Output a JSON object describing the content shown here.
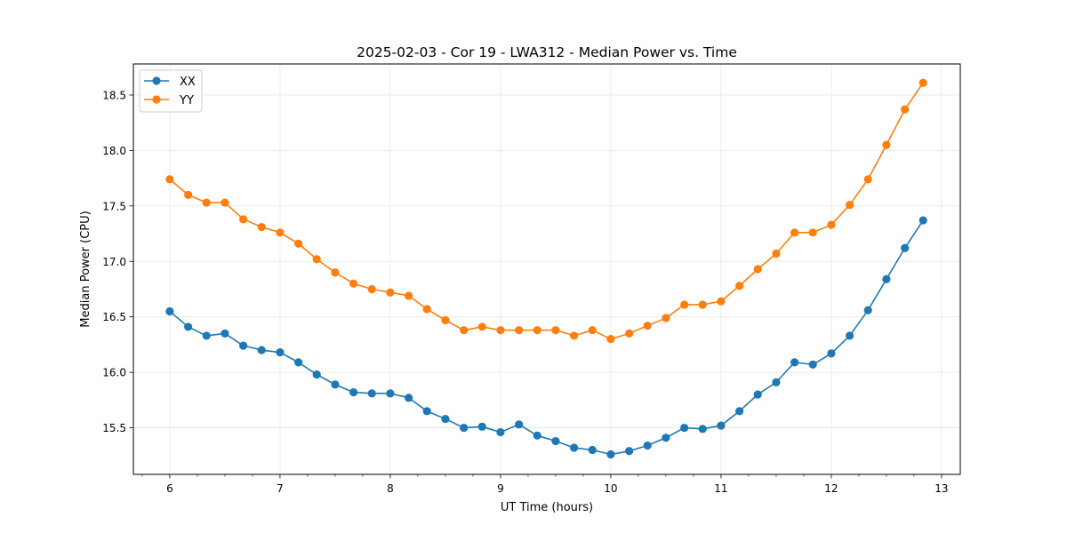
{
  "chart_data": {
    "type": "line",
    "title": "2025-02-03 - Cor 19 - LWA312 - Median Power vs. Time",
    "xlabel": "UT Time (hours)",
    "ylabel": "Median Power (CPU)",
    "xlim": [
      5.67,
      13.17
    ],
    "ylim": [
      15.08,
      18.78
    ],
    "xticks": [
      6,
      7,
      8,
      9,
      10,
      11,
      12,
      13
    ],
    "yticks": [
      15.5,
      16.0,
      16.5,
      17.0,
      17.5,
      18.0,
      18.5
    ],
    "grid": true,
    "legend_position": "top-left",
    "x": [
      6.0,
      6.167,
      6.333,
      6.5,
      6.667,
      6.833,
      7.0,
      7.167,
      7.333,
      7.5,
      7.667,
      7.833,
      8.0,
      8.167,
      8.333,
      8.5,
      8.667,
      8.833,
      9.0,
      9.167,
      9.333,
      9.5,
      9.667,
      9.833,
      10.0,
      10.167,
      10.333,
      10.5,
      10.667,
      10.833,
      11.0,
      11.167,
      11.333,
      11.5,
      11.667,
      11.833,
      12.0,
      12.167,
      12.333,
      12.5,
      12.667,
      12.833
    ],
    "series": [
      {
        "name": "XX",
        "color": "#1f77b4",
        "values": [
          16.55,
          16.41,
          16.33,
          16.35,
          16.24,
          16.2,
          16.18,
          16.09,
          15.98,
          15.89,
          15.82,
          15.81,
          15.81,
          15.77,
          15.65,
          15.58,
          15.5,
          15.51,
          15.46,
          15.53,
          15.43,
          15.38,
          15.32,
          15.3,
          15.26,
          15.29,
          15.34,
          15.41,
          15.5,
          15.49,
          15.52,
          15.65,
          15.8,
          15.91,
          16.09,
          16.07,
          16.17,
          16.33,
          16.56,
          16.84,
          17.12,
          17.37
        ]
      },
      {
        "name": "YY",
        "color": "#ff7f0e",
        "values": [
          17.74,
          17.6,
          17.53,
          17.53,
          17.38,
          17.31,
          17.26,
          17.16,
          17.02,
          16.9,
          16.8,
          16.75,
          16.72,
          16.69,
          16.57,
          16.47,
          16.38,
          16.41,
          16.38,
          16.38,
          16.38,
          16.38,
          16.33,
          16.38,
          16.3,
          16.35,
          16.42,
          16.49,
          16.61,
          16.61,
          16.64,
          16.78,
          16.93,
          17.07,
          17.26,
          17.26,
          17.33,
          17.51,
          17.74,
          18.05,
          18.37,
          18.61
        ]
      }
    ]
  }
}
